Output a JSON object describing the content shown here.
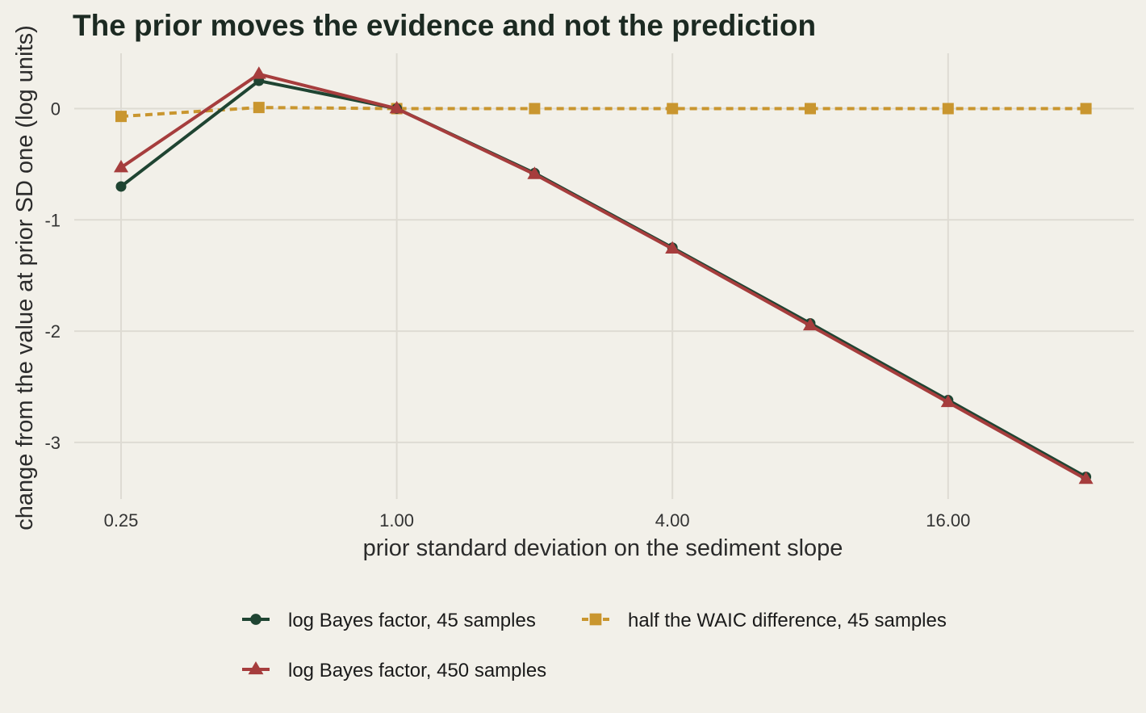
{
  "chart_data": {
    "type": "line",
    "title": "The prior moves the evidence and not the prediction",
    "xlabel": "prior standard deviation on the sediment slope",
    "ylabel": "change from the value at prior SD one (log units)",
    "x_scale": "log2",
    "x": [
      0.25,
      0.5,
      1,
      2,
      4,
      8,
      16,
      32
    ],
    "x_ticks": [
      0.25,
      1,
      4,
      16
    ],
    "x_tick_labels": [
      "0.25",
      "1.00",
      "4.00",
      "16.00"
    ],
    "y_ticks": [
      0,
      -1,
      -2,
      -3
    ],
    "y_tick_labels": [
      "0",
      "-1",
      "-2",
      "-3"
    ],
    "xlim": [
      0.25,
      32
    ],
    "ylim": [
      -3.45,
      0.45
    ],
    "grid": true,
    "legend_position": "bottom",
    "series": [
      {
        "name": "log Bayes factor, 45 samples",
        "color": "#1f4432",
        "marker": "circle",
        "line_style": "solid",
        "values": [
          -0.7,
          0.25,
          0.0,
          -0.58,
          -1.25,
          -1.93,
          -2.62,
          -3.31
        ]
      },
      {
        "name": "half the WAIC difference, 45 samples",
        "color": "#c9962f",
        "marker": "square",
        "line_style": "dashed",
        "values": [
          -0.07,
          0.01,
          0.0,
          0.0,
          0.0,
          0.0,
          0.0,
          0.0
        ]
      },
      {
        "name": "log Bayes factor, 450 samples",
        "color": "#a63d3d",
        "marker": "triangle",
        "line_style": "solid",
        "values": [
          -0.53,
          0.31,
          0.0,
          -0.59,
          -1.26,
          -1.95,
          -2.64,
          -3.33
        ]
      }
    ]
  }
}
